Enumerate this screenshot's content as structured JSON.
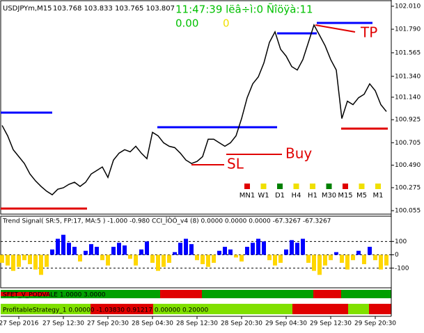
{
  "header": {
    "symbol": "USDJPYm,M15",
    "ohlc": "103.768 103.833 103.765 103.807",
    "clock": "11:47:39 lëâ÷ì:0 Ñîöÿà:11",
    "counter_left": "0.00",
    "counter_right": "0"
  },
  "annotations": {
    "tp": "TP",
    "buy": "Buy",
    "sl": "SL"
  },
  "timeframes": [
    {
      "label": "MN1",
      "color": "#e00000"
    },
    {
      "label": "W1",
      "color": "#f0e000"
    },
    {
      "label": "D1",
      "color": "#008000"
    },
    {
      "label": "H4",
      "color": "#f0e000"
    },
    {
      "label": "H1",
      "color": "#f0e000"
    },
    {
      "label": "M30",
      "color": "#008000"
    },
    {
      "label": "M15",
      "color": "#e00000"
    },
    {
      "label": "M5",
      "color": "#f0e000"
    },
    {
      "label": "M1",
      "color": "#f0e000"
    }
  ],
  "strips": {
    "sfet": "SFET_V_PODVALE 1.0000 3.0000",
    "profitable": "ProfitableStrategy_1 0.00000 -1.03830 0.91217 0.00000 0.20000"
  },
  "chart_data": [
    {
      "type": "line",
      "color": "#000000",
      "categories": [
        null,
        null,
        null,
        "27 Sep 2016",
        null,
        null,
        null,
        null,
        null,
        null,
        null,
        "27 Sep 12:30",
        null,
        null,
        null,
        null,
        null,
        null,
        null,
        "27 Sep 20:30",
        null,
        null,
        null,
        null,
        null,
        null,
        null,
        "28 Sep 04:30",
        null,
        null,
        null,
        null,
        null,
        null,
        null,
        "28 Sep 12:30",
        null,
        null,
        null,
        null,
        null,
        null,
        null,
        "28 Sep 20:30",
        null,
        null,
        null,
        null,
        null,
        null,
        null,
        "29 Sep 04:30",
        null,
        null,
        null,
        null,
        null,
        null,
        null,
        "29 Sep 12:30",
        null,
        null,
        null,
        null,
        null,
        null,
        null,
        "29 Sep 20:30",
        null,
        null
      ],
      "values": [
        100.87,
        100.771,
        100.638,
        100.572,
        100.506,
        100.406,
        100.34,
        100.287,
        100.241,
        100.207,
        100.26,
        100.274,
        100.307,
        100.327,
        100.287,
        100.327,
        100.406,
        100.439,
        100.473,
        100.373,
        100.539,
        100.605,
        100.638,
        100.618,
        100.671,
        100.605,
        100.552,
        100.804,
        100.771,
        100.704,
        100.671,
        100.658,
        100.605,
        100.539,
        100.506,
        100.526,
        100.572,
        100.738,
        100.738,
        100.704,
        100.671,
        100.704,
        100.771,
        100.936,
        101.135,
        101.268,
        101.334,
        101.467,
        101.665,
        101.765,
        101.599,
        101.533,
        101.433,
        101.4,
        101.5,
        101.665,
        101.831,
        101.732,
        101.632,
        101.5,
        101.4,
        100.936,
        101.102,
        101.069,
        101.135,
        101.168,
        101.268,
        101.202,
        101.069,
        101.003
      ],
      "ylim": [
        100.022,
        102.063
      ],
      "yticks": [
        {
          "value": 102.01,
          "label": "102.010"
        },
        {
          "value": 101.79,
          "label": "101.790"
        },
        {
          "value": 101.565,
          "label": "101.565"
        },
        {
          "value": 101.34,
          "label": "101.340"
        },
        {
          "value": 101.14,
          "label": "101.140"
        },
        {
          "value": 100.925,
          "label": "100.925"
        },
        {
          "value": 100.705,
          "label": "100.705"
        },
        {
          "value": 100.49,
          "label": "100.490"
        },
        {
          "value": 100.275,
          "label": "100.275"
        },
        {
          "value": 100.055,
          "label": "100.055"
        }
      ]
    },
    {
      "type": "bar",
      "title": "Trend Signal( SR:5, FP:17, MA:5 ) -1.000 -0.980   CCI_ÎÒÓ_v4 (8) 0.0000 0.0000 0.0000 -67.3267 -67.3267",
      "color_positive": "#0000ff",
      "color_negative": "#ffd700",
      "values": [
        -60,
        -80,
        -120,
        -90,
        -40,
        -70,
        -110,
        -150,
        -90,
        40,
        120,
        150,
        90,
        60,
        -50,
        30,
        80,
        60,
        -40,
        -80,
        60,
        90,
        70,
        -30,
        -80,
        40,
        100,
        -60,
        -120,
        -90,
        -60,
        20,
        90,
        120,
        80,
        -40,
        -70,
        -90,
        -60,
        30,
        60,
        40,
        -20,
        -50,
        60,
        90,
        120,
        100,
        -40,
        -80,
        -60,
        40,
        110,
        90,
        120,
        -60,
        -120,
        -150,
        -80,
        -40,
        20,
        -60,
        -110,
        -40,
        30,
        -70,
        60,
        -40,
        -110,
        -80
      ],
      "ylim": [
        -247,
        289
      ],
      "yticks": [
        100,
        0,
        -100
      ]
    }
  ]
}
